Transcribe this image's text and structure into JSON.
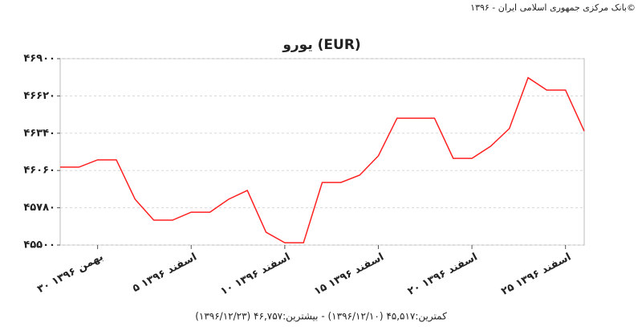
{
  "copyright": "بانک مرکزی جمهوری اسلامی ایران - ۱۳۹۶©",
  "chart_data": {
    "type": "line",
    "title": "یورو (EUR)",
    "categories": [
      null,
      null,
      "۳۰ بهمن ۱۳۹۶",
      null,
      null,
      null,
      null,
      "۵ اسفند ۱۳۹۶",
      null,
      null,
      null,
      null,
      "۱۰ اسفند ۱۳۹۶",
      null,
      null,
      null,
      null,
      "۱۵ اسفند ۱۳۹۶",
      null,
      null,
      null,
      null,
      "۲۰ اسفند ۱۳۹۶",
      null,
      null,
      null,
      null,
      "۲۵ اسفند ۱۳۹۶",
      null
    ],
    "series": [
      {
        "color": "#ff2020",
        "values": [
          46085,
          46085,
          46140,
          46140,
          45844,
          45687,
          45687,
          45747,
          45747,
          45844,
          45910,
          45596,
          45517,
          45517,
          45970,
          45970,
          46025,
          46170,
          46453,
          46453,
          46453,
          46151,
          46151,
          46242,
          46375,
          46757,
          46664,
          46664,
          46356
        ]
      }
    ],
    "ylim": [
      45500,
      46900
    ],
    "yticks": [
      {
        "value": 45500,
        "label": "۴۵۵۰۰"
      },
      {
        "value": 45780,
        "label": "۴۵۷۸۰"
      },
      {
        "value": 46060,
        "label": "۴۶۰۶۰"
      },
      {
        "value": 46340,
        "label": "۴۶۳۴۰"
      },
      {
        "value": 46620,
        "label": "۴۶۶۲۰"
      },
      {
        "value": 46900,
        "label": "۴۶۹۰۰"
      }
    ],
    "grid": true,
    "footer": "کمترین:۴۵,۵۱۷ (۱۳۹۶/۱۲/۱۰) - بیشترین:۴۶,۷۵۷ (۱۳۹۶/۱۲/۲۳)"
  }
}
